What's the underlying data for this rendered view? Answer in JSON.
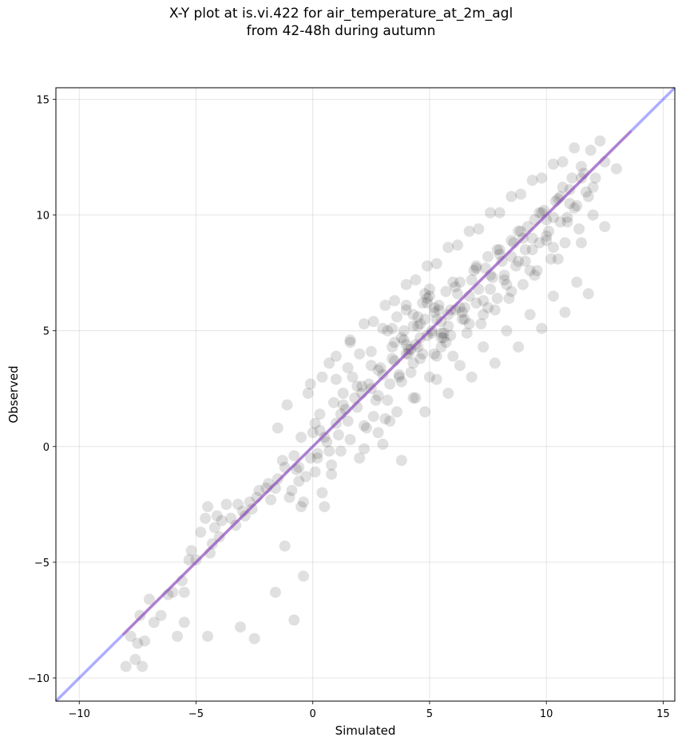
{
  "title_line1": "X-Y plot at is.vi.422 for air_temperature_at_2m_agl",
  "title_line2": "from 42-48h during autumn",
  "chart_data": {
    "type": "scatter",
    "xlabel": "Simulated",
    "ylabel": "Observed",
    "xlim": [
      -11,
      15.5
    ],
    "ylim": [
      -11,
      15.5
    ],
    "xticks": [
      -10,
      -5,
      0,
      5,
      10,
      15
    ],
    "yticks": [
      -10,
      -5,
      0,
      5,
      10,
      15
    ],
    "xtick_labels": [
      "−10",
      "−5",
      "0",
      "5",
      "10",
      "15"
    ],
    "ytick_labels": [
      "−10",
      "−5",
      "0",
      "5",
      "10",
      "15"
    ],
    "grid": true,
    "point_color": "#000000",
    "point_alpha": 0.12,
    "identity_line": {
      "color": "#4a4aff",
      "x": [
        -11,
        15.5
      ],
      "y": [
        -11,
        15.5
      ]
    },
    "fit_line": {
      "color": "#ff4a4a",
      "x": [
        -8.1,
        13.6
      ],
      "y": [
        -8.1,
        13.6
      ]
    },
    "points": {
      "x": [
        -8.0,
        -7.8,
        -7.6,
        -7.5,
        -7.4,
        -7.2,
        -7.0,
        -6.5,
        -6.2,
        -5.8,
        -5.5,
        -5.2,
        -5.0,
        -4.8,
        -4.5,
        -4.4,
        -4.2,
        -4.0,
        -3.7,
        -3.3,
        -3.0,
        -2.7,
        -2.4,
        -2.0,
        -1.8,
        -1.5,
        -1.2,
        -1.0,
        -0.8,
        -0.6,
        -0.5,
        -0.3,
        -0.1,
        0.1,
        0.4,
        -5.6,
        -5.3,
        -4.6,
        -4.3,
        -4.1,
        -3.9,
        -3.5,
        -3.2,
        -2.9,
        -2.6,
        -2.3,
        -1.9,
        -1.6,
        -1.3,
        -0.9,
        -0.7,
        -0.4,
        0.2,
        0.5,
        0.8,
        -1.2,
        -0.8,
        -0.4,
        -1.6,
        -2.5,
        -3.1,
        -4.5,
        -5.5,
        -6.0,
        -6.8,
        -7.3,
        0.0,
        0.3,
        0.6,
        0.9,
        1.1,
        1.3,
        1.5,
        1.7,
        1.9,
        2.1,
        2.3,
        2.5,
        2.7,
        2.9,
        3.1,
        3.3,
        3.5,
        3.7,
        3.9,
        4.1,
        4.3,
        4.5,
        4.7,
        4.9,
        5.1,
        5.3,
        5.5,
        5.7,
        5.9,
        6.1,
        6.3,
        6.5,
        6.7,
        6.9,
        7.1,
        7.3,
        7.5,
        7.7,
        7.9,
        8.1,
        8.3,
        8.5,
        8.7,
        8.9,
        9.1,
        9.3,
        9.5,
        9.7,
        9.9,
        10.1,
        10.3,
        10.5,
        10.7,
        10.9,
        11.1,
        11.3,
        11.5,
        11.7,
        11.9,
        12.1,
        12.3,
        12.5,
        0.2,
        0.5,
        0.8,
        1.0,
        1.2,
        1.4,
        1.6,
        1.8,
        2.0,
        2.2,
        2.4,
        2.6,
        2.8,
        3.0,
        3.2,
        3.4,
        3.6,
        3.8,
        4.0,
        4.2,
        4.4,
        4.6,
        4.8,
        5.0,
        5.2,
        5.4,
        5.6,
        5.8,
        6.0,
        6.2,
        6.4,
        6.6,
        6.8,
        7.0,
        7.2,
        7.4,
        7.6,
        7.8,
        8.0,
        8.2,
        8.4,
        8.6,
        8.8,
        9.0,
        9.2,
        9.4,
        9.6,
        9.8,
        10.0,
        10.2,
        10.4,
        10.6,
        10.8,
        11.0,
        11.2,
        11.4,
        11.6,
        11.8,
        12.0,
        1.0,
        1.5,
        2.0,
        2.5,
        3.0,
        3.5,
        4.0,
        4.5,
        5.0,
        5.5,
        6.0,
        6.5,
        7.0,
        7.5,
        8.0,
        8.5,
        9.0,
        9.5,
        10.0,
        10.5,
        11.0,
        11.5,
        12.0,
        12.5,
        13.0,
        2.2,
        2.8,
        3.3,
        3.8,
        4.3,
        4.8,
        5.3,
        5.8,
        6.3,
        6.8,
        7.3,
        7.8,
        8.3,
        8.8,
        9.3,
        9.8,
        10.3,
        10.8,
        11.3,
        11.8,
        -0.5,
        -0.2,
        0.1,
        0.4,
        0.7,
        1.0,
        1.3,
        1.6,
        1.9,
        2.2,
        2.5,
        2.8,
        3.1,
        3.4,
        3.7,
        4.0,
        4.3,
        4.6,
        4.9,
        5.2,
        5.5,
        5.8,
        6.1,
        6.4,
        6.7,
        7.0,
        7.3,
        7.6,
        7.9,
        8.2,
        8.5,
        8.8,
        9.1,
        9.4,
        9.7,
        10.0,
        10.3,
        10.6,
        10.9,
        11.2,
        11.5,
        -1.5,
        -1.1,
        -0.6,
        -0.1,
        0.3,
        0.7,
        1.2,
        1.6,
        2.1,
        2.6,
        3.0,
        3.5,
        4.0,
        4.4,
        4.9,
        5.3,
        5.8,
        6.2,
        6.7,
        7.1,
        7.6,
        8.0,
        8.5,
        8.9,
        9.4,
        9.8,
        10.3,
        10.7,
        3.2,
        3.6,
        4.0,
        4.4,
        4.8,
        5.2,
        5.6,
        4.2,
        4.6,
        5.0,
        5.4,
        3.8,
        4.1,
        4.5,
        4.9,
        5.3,
        5.7,
        3.4,
        3.9,
        4.3,
        4.7,
        5.1,
        5.5,
        5.9,
        6.3
      ],
      "y": [
        -9.5,
        -8.2,
        -9.2,
        -8.5,
        -7.3,
        -8.4,
        -6.6,
        -7.3,
        -6.4,
        -8.2,
        -6.3,
        -4.5,
        -4.9,
        -3.7,
        -2.6,
        -4.6,
        -3.5,
        -3.9,
        -2.5,
        -3.4,
        -2.8,
        -2.4,
        -2.2,
        -1.8,
        -2.3,
        -1.4,
        -0.9,
        -2.2,
        -0.4,
        -1.5,
        -2.6,
        -1.3,
        -0.5,
        -1.1,
        -2.0,
        -5.8,
        -4.9,
        -3.1,
        -4.2,
        -3.0,
        -3.2,
        -3.1,
        -2.5,
        -3.0,
        -2.7,
        -1.9,
        -1.6,
        -1.8,
        -0.6,
        -1.9,
        -1.0,
        -2.4,
        -0.5,
        -2.6,
        -1.2,
        -4.3,
        -7.5,
        -5.6,
        -6.3,
        -8.3,
        -7.8,
        -8.2,
        -7.6,
        -6.3,
        -7.6,
        -9.5,
        0.6,
        1.4,
        0.2,
        1.9,
        0.5,
        2.3,
        1.1,
        3.0,
        1.7,
        2.6,
        0.8,
        4.1,
        2.0,
        3.4,
        1.2,
        2.7,
        4.5,
        3.1,
        5.0,
        4.2,
        3.6,
        5.6,
        4.0,
        6.2,
        4.9,
        3.9,
        5.4,
        6.7,
        4.8,
        5.9,
        7.1,
        6.0,
        5.3,
        7.6,
        6.8,
        5.7,
        8.2,
        7.3,
        6.4,
        8.0,
        7.0,
        8.9,
        7.8,
        9.3,
        8.5,
        7.6,
        9.8,
        8.8,
        10.2,
        9.3,
        8.6,
        10.7,
        11.2,
        9.9,
        11.6,
        10.4,
        12.1,
        11.0,
        12.8,
        11.6,
        13.2,
        12.3,
        -0.3,
        0.4,
        -0.8,
        1.0,
        -0.2,
        1.6,
        0.3,
        2.1,
        -0.5,
        0.9,
        2.7,
        1.3,
        3.3,
        0.1,
        2.0,
        3.8,
        1.5,
        2.8,
        4.4,
        3.2,
        2.1,
        4.7,
        5.5,
        3.0,
        4.0,
        6.1,
        4.7,
        5.2,
        3.9,
        6.6,
        5.8,
        4.9,
        7.2,
        6.2,
        5.3,
        7.7,
        6.8,
        5.9,
        8.3,
        7.4,
        6.4,
        8.8,
        8.0,
        7.0,
        9.5,
        8.5,
        7.6,
        10.1,
        9.1,
        8.1,
        10.6,
        9.7,
        8.8,
        11.1,
        10.3,
        9.4,
        11.8,
        10.8,
        10.0,
        2.9,
        3.4,
        4.0,
        2.5,
        5.1,
        3.7,
        5.9,
        4.3,
        6.5,
        4.9,
        7.1,
        5.5,
        7.8,
        6.0,
        8.5,
        6.7,
        9.0,
        7.4,
        9.8,
        8.1,
        10.5,
        8.8,
        11.2,
        9.5,
        12.0,
        -0.1,
        0.6,
        1.1,
        -0.6,
        2.1,
        1.5,
        2.9,
        2.3,
        3.5,
        3.0,
        4.3,
        3.6,
        5.0,
        4.3,
        5.7,
        5.1,
        6.5,
        5.8,
        7.1,
        6.6,
        0.4,
        2.3,
        1.0,
        3.0,
        -0.2,
        3.9,
        1.8,
        4.6,
        2.6,
        5.3,
        3.5,
        2.2,
        6.1,
        4.3,
        3.0,
        7.0,
        5.2,
        3.8,
        7.8,
        6.0,
        4.7,
        8.6,
        6.9,
        5.5,
        9.3,
        7.7,
        6.3,
        10.1,
        8.5,
        7.2,
        10.8,
        9.3,
        8.0,
        11.5,
        10.1,
        8.9,
        12.2,
        10.8,
        9.7,
        12.9,
        11.6,
        0.8,
        1.8,
        -0.9,
        2.7,
        0.7,
        3.6,
        1.4,
        4.5,
        2.3,
        5.4,
        3.1,
        6.3,
        4.0,
        7.2,
        4.8,
        7.9,
        5.7,
        8.7,
        6.5,
        9.4,
        7.4,
        10.1,
        8.2,
        10.9,
        9.0,
        11.6,
        9.9,
        12.3,
        5.0,
        5.6,
        6.1,
        4.4,
        6.6,
        5.8,
        4.9,
        4.2,
        5.3,
        6.8,
        5.9,
        4.7,
        4.0,
        5.2,
        6.4,
        5.5,
        4.5,
        5.1,
        4.6,
        5.7,
        6.2,
        5.0,
        4.3,
        5.9,
        6.0
      ]
    }
  }
}
